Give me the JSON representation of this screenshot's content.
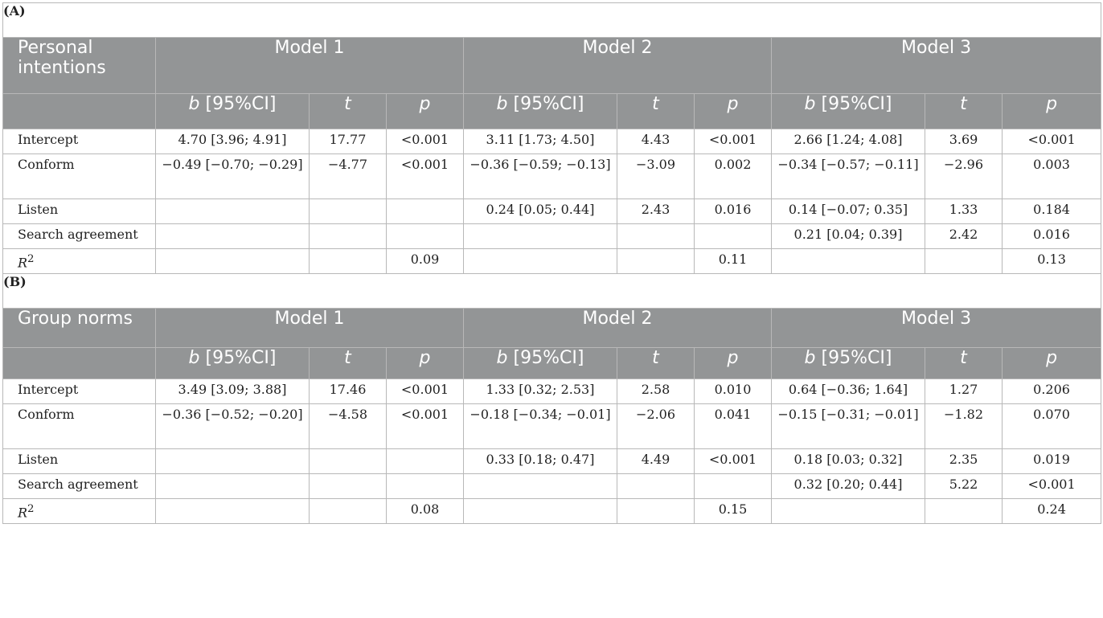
{
  "panel_a": {
    "label": "(A)",
    "dv": "Personal intentions",
    "models": [
      "Model 1",
      "Model 2",
      "Model 3"
    ],
    "cols": {
      "b": "b",
      "ci": " [95%CI]",
      "t": "t",
      "p": "p"
    },
    "rows": [
      {
        "name": "Intercept",
        "cells": [
          "4.70 [3.96; 4.91]",
          "17.77",
          "<0.001",
          "3.11 [1.73; 4.50]",
          "4.43",
          "<0.001",
          "2.66 [1.24; 4.08]",
          "3.69",
          "<0.001"
        ]
      },
      {
        "name": "Conform",
        "cells": [
          "−0.49 [−0.70; −0.29]",
          "−4.77",
          "<0.001",
          "−0.36 [−0.59; −0.13]",
          "−3.09",
          "0.002",
          "−0.34 [−0.57; −0.11]",
          "−2.96",
          "0.003"
        ]
      },
      {
        "name": "Listen",
        "cells": [
          "",
          "",
          "",
          "0.24 [0.05; 0.44]",
          "2.43",
          "0.016",
          "0.14 [−0.07; 0.35]",
          "1.33",
          "0.184"
        ]
      },
      {
        "name": "Search agreement",
        "cells": [
          "",
          "",
          "",
          "",
          "",
          "",
          "0.21 [0.04; 0.39]",
          "2.42",
          "0.016"
        ]
      }
    ],
    "r2": {
      "label": "R",
      "sup": "2",
      "m1": "0.09",
      "m2": "0.11",
      "m3": "0.13"
    }
  },
  "panel_b": {
    "label": "(B)",
    "dv": "Group norms",
    "models": [
      "Model 1",
      "Model 2",
      "Model 3"
    ],
    "cols": {
      "b": "b",
      "ci": " [95%CI]",
      "t": "t",
      "p": "p"
    },
    "rows": [
      {
        "name": "Intercept",
        "cells": [
          "3.49 [3.09; 3.88]",
          "17.46",
          "<0.001",
          "1.33 [0.32; 2.53]",
          "2.58",
          "0.010",
          "0.64 [−0.36; 1.64]",
          "1.27",
          "0.206"
        ]
      },
      {
        "name": "Conform",
        "cells": [
          "−0.36 [−0.52; −0.20]",
          "−4.58",
          "<0.001",
          "−0.18 [−0.34; −0.01]",
          "−2.06",
          "0.041",
          "−0.15 [−0.31; −0.01]",
          "−1.82",
          "0.070"
        ]
      },
      {
        "name": "Listen",
        "cells": [
          "",
          "",
          "",
          "0.33 [0.18; 0.47]",
          "4.49",
          "<0.001",
          "0.18 [0.03; 0.32]",
          "2.35",
          "0.019"
        ]
      },
      {
        "name": "Search agreement",
        "cells": [
          "",
          "",
          "",
          "",
          "",
          "",
          "0.32 [0.20; 0.44]",
          "5.22",
          "<0.001"
        ]
      }
    ],
    "r2": {
      "label": "R",
      "sup": "2",
      "m1": "0.08",
      "m2": "0.15",
      "m3": "0.24"
    }
  }
}
